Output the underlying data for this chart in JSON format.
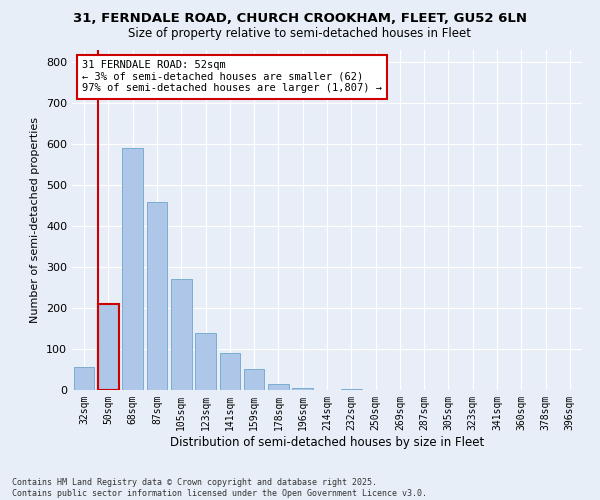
{
  "title_line1": "31, FERNDALE ROAD, CHURCH CROOKHAM, FLEET, GU52 6LN",
  "title_line2": "Size of property relative to semi-detached houses in Fleet",
  "xlabel": "Distribution of semi-detached houses by size in Fleet",
  "ylabel": "Number of semi-detached properties",
  "annotation_title": "31 FERNDALE ROAD: 52sqm",
  "annotation_line2": "← 3% of semi-detached houses are smaller (62)",
  "annotation_line3": "97% of semi-detached houses are larger (1,807) →",
  "categories": [
    "32sqm",
    "50sqm",
    "68sqm",
    "87sqm",
    "105sqm",
    "123sqm",
    "141sqm",
    "159sqm",
    "178sqm",
    "196sqm",
    "214sqm",
    "232sqm",
    "250sqm",
    "269sqm",
    "287sqm",
    "305sqm",
    "323sqm",
    "341sqm",
    "360sqm",
    "378sqm",
    "396sqm"
  ],
  "values": [
    55,
    210,
    590,
    460,
    270,
    140,
    90,
    52,
    15,
    5,
    0,
    2,
    0,
    1,
    0,
    0,
    0,
    0,
    0,
    0,
    0
  ],
  "bar_color": "#aec6e8",
  "bar_edge_color": "#7aadd4",
  "highlight_bar_index": 1,
  "highlight_edge_color": "#cc0000",
  "annotation_box_edge_color": "#cc0000",
  "annotation_box_face_color": "#ffffff",
  "background_color": "#e8eef7",
  "plot_bg_color": "#e8eef7",
  "grid_color": "#ffffff",
  "ylim": [
    0,
    830
  ],
  "yticks": [
    0,
    100,
    200,
    300,
    400,
    500,
    600,
    700,
    800
  ],
  "footer_line1": "Contains HM Land Registry data © Crown copyright and database right 2025.",
  "footer_line2": "Contains public sector information licensed under the Open Government Licence v3.0."
}
